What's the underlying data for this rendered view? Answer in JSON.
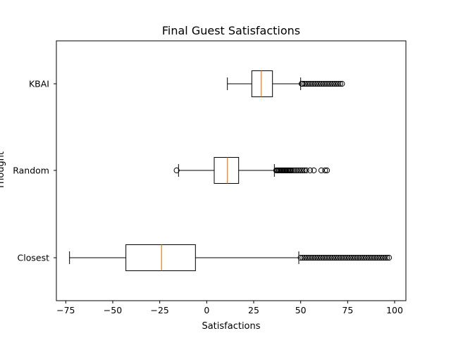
{
  "chart_data": {
    "type": "boxplot",
    "orientation": "horizontal",
    "title": "Final Guest Satisfactions",
    "xlabel": "Satisfactions",
    "ylabel": "Thought",
    "xlim": [
      -80,
      106
    ],
    "xticks": [
      -75,
      -50,
      -25,
      0,
      25,
      50,
      75,
      100
    ],
    "xtick_labels": [
      "−75",
      "−50",
      "−25",
      "0",
      "25",
      "50",
      "75",
      "100"
    ],
    "categories": [
      "Closest",
      "Random",
      "KBAI"
    ],
    "boxes": [
      {
        "name": "Closest",
        "whisker_low": -73,
        "q1": -43,
        "median": -24,
        "q3": -6,
        "whisker_high": 49,
        "outliers": [
          50,
          51,
          52,
          53,
          54,
          55,
          56,
          57,
          58,
          59,
          60,
          61,
          62,
          63,
          64,
          65,
          66,
          67,
          68,
          69,
          70,
          71,
          72,
          73,
          74,
          75,
          76,
          77,
          78,
          79,
          80,
          81,
          82,
          83,
          84,
          85,
          86,
          87,
          88,
          89,
          90,
          91,
          92,
          93,
          94,
          95,
          96,
          97
        ]
      },
      {
        "name": "Random",
        "whisker_low": -15,
        "q1": 4,
        "median": 11,
        "q3": 17,
        "whisker_high": 36,
        "outliers": [
          -16,
          37,
          37.5,
          38,
          38.5,
          39,
          39.5,
          40,
          40.5,
          41,
          41.5,
          42,
          42.5,
          43,
          43.5,
          44,
          44.5,
          45,
          46,
          47,
          48,
          49,
          50,
          51,
          52,
          53,
          55,
          57,
          61,
          63,
          64
        ]
      },
      {
        "name": "KBAI",
        "whisker_low": 11,
        "q1": 24,
        "median": 29,
        "q3": 35,
        "whisker_high": 50,
        "outliers": [
          50.5,
          51,
          52,
          53,
          54,
          55,
          56,
          57,
          58,
          59,
          60,
          61,
          62,
          63,
          64,
          65,
          66,
          67,
          68,
          69,
          70,
          71,
          72
        ]
      }
    ],
    "colors": {
      "box": "#000000",
      "median": "#ff7f0e",
      "outlier": "#000000"
    },
    "grid": false
  }
}
